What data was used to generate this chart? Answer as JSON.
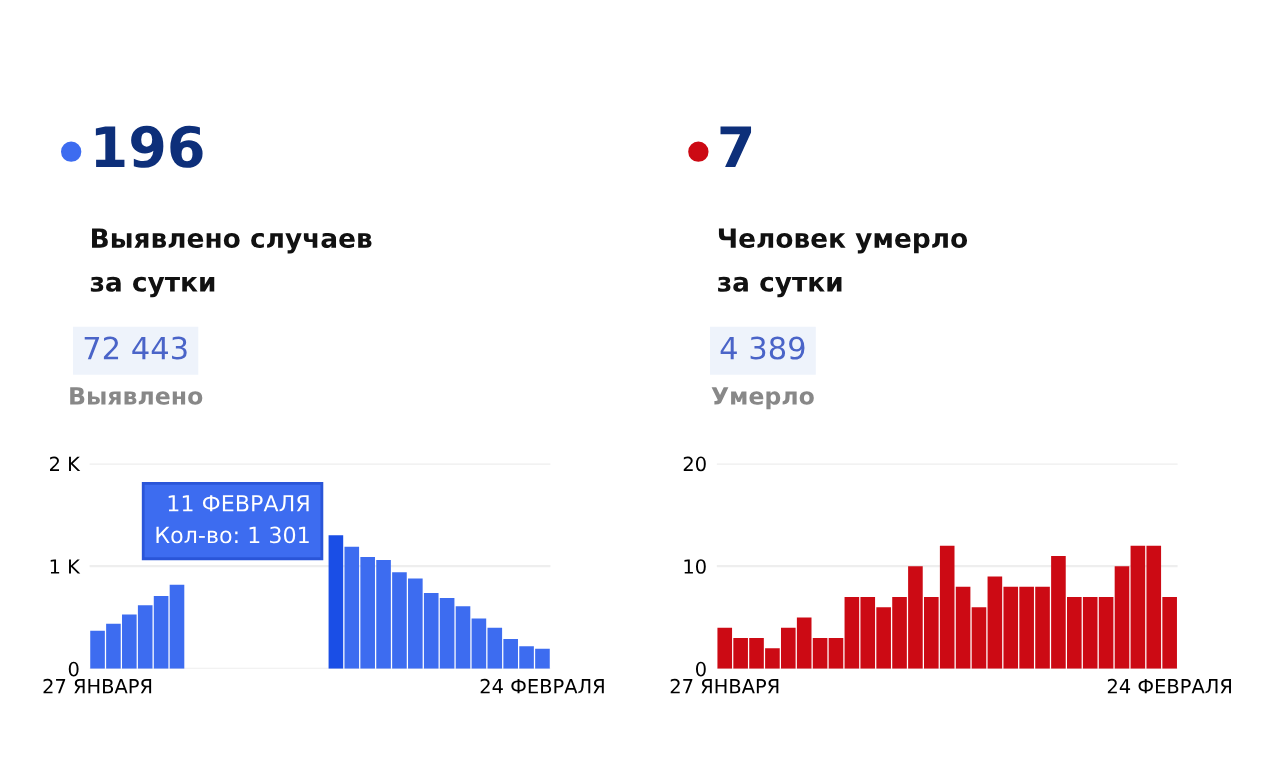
{
  "chart_data": [
    {
      "type": "bar",
      "color": "#3d6cf0",
      "title": "196",
      "subtitle": "Выявлено случаев\nза сутки",
      "annotations": [
        "72 443",
        "Выявлено",
        "11 ФЕВРАЛЯ\nКол-во: 1 301"
      ],
      "categories": [
        "27 ЯНВАРЯ",
        null,
        null,
        null,
        null,
        null,
        null,
        null,
        null,
        null,
        null,
        null,
        null,
        null,
        null,
        null,
        null,
        null,
        null,
        null,
        null,
        null,
        null,
        null,
        null,
        null,
        null,
        null,
        "24 ФЕВРАЛЯ"
      ],
      "values": [
        370,
        440,
        530,
        620,
        710,
        820,
        null,
        null,
        null,
        null,
        null,
        null,
        null,
        null,
        null,
        1301,
        1190,
        1090,
        1060,
        940,
        880,
        740,
        690,
        610,
        490,
        400,
        290,
        220,
        196
      ],
      "colors": [
        "#3d6cf0",
        "#3d6cf0",
        "#3d6cf0",
        "#3d6cf0",
        "#3d6cf0",
        "#3d6cf0",
        "#3d6cf0",
        "#3d6cf0",
        "#3d6cf0",
        "#3d6cf0",
        "#3d6cf0",
        "#3d6cf0",
        "#3d6cf0",
        "#3d6cf0",
        "#3d6cf0",
        "#1a4ee6",
        "#3d6cf0",
        "#3d6cf0",
        "#3d6cf0",
        "#3d6cf0",
        "#3d6cf0",
        "#3d6cf0",
        "#3d6cf0",
        "#3d6cf0",
        "#3d6cf0",
        "#3d6cf0",
        "#3d6cf0",
        "#3d6cf0",
        "#3d6cf0"
      ],
      "ylim": [
        0,
        2000
      ],
      "yticks": [
        0,
        {
          "value": 1000,
          "label": "1 K"
        },
        {
          "value": 2000,
          "label": "2 K"
        }
      ],
      "grid": "y"
    },
    {
      "type": "bar",
      "color": "#cc0a14",
      "title": "7",
      "subtitle": "Человек умерло\nза сутки",
      "annotations": [
        "4 389",
        "Умерло"
      ],
      "categories": [
        "27 ЯНВАРЯ",
        null,
        null,
        null,
        null,
        null,
        null,
        null,
        null,
        null,
        null,
        null,
        null,
        null,
        null,
        null,
        null,
        null,
        null,
        null,
        null,
        null,
        null,
        null,
        null,
        null,
        null,
        null,
        "24 ФЕВРАЛЯ"
      ],
      "values": [
        4,
        3,
        3,
        2,
        4,
        5,
        3,
        3,
        7,
        7,
        6,
        7,
        10,
        7,
        12,
        8,
        6,
        9,
        8,
        8,
        8,
        11,
        7,
        7,
        7,
        10,
        12,
        12,
        7
      ],
      "ylim": [
        0,
        20
      ],
      "yticks": [
        0,
        10,
        20
      ],
      "grid": "y"
    }
  ]
}
